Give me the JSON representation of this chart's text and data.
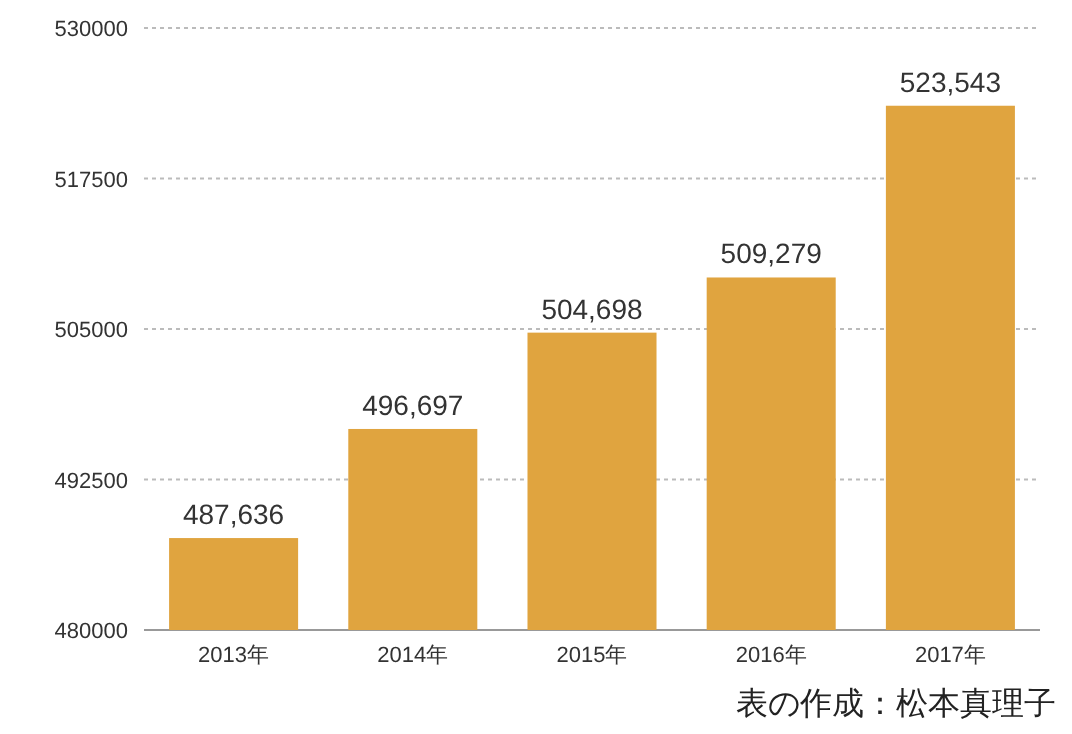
{
  "chart_data": {
    "type": "bar",
    "categories": [
      "2013年",
      "2014年",
      "2015年",
      "2016年",
      "2017年"
    ],
    "values": [
      487636,
      496697,
      504698,
      509279,
      523543
    ],
    "value_labels": [
      "487,636",
      "496,697",
      "504,698",
      "509,279",
      "523,543"
    ],
    "color": "#e0a43f",
    "ylim": [
      480000,
      530000
    ],
    "yticks": [
      480000,
      492500,
      505000,
      517500,
      530000
    ],
    "grid": "y",
    "annotations": [
      "表の作成：松本真理子"
    ]
  }
}
